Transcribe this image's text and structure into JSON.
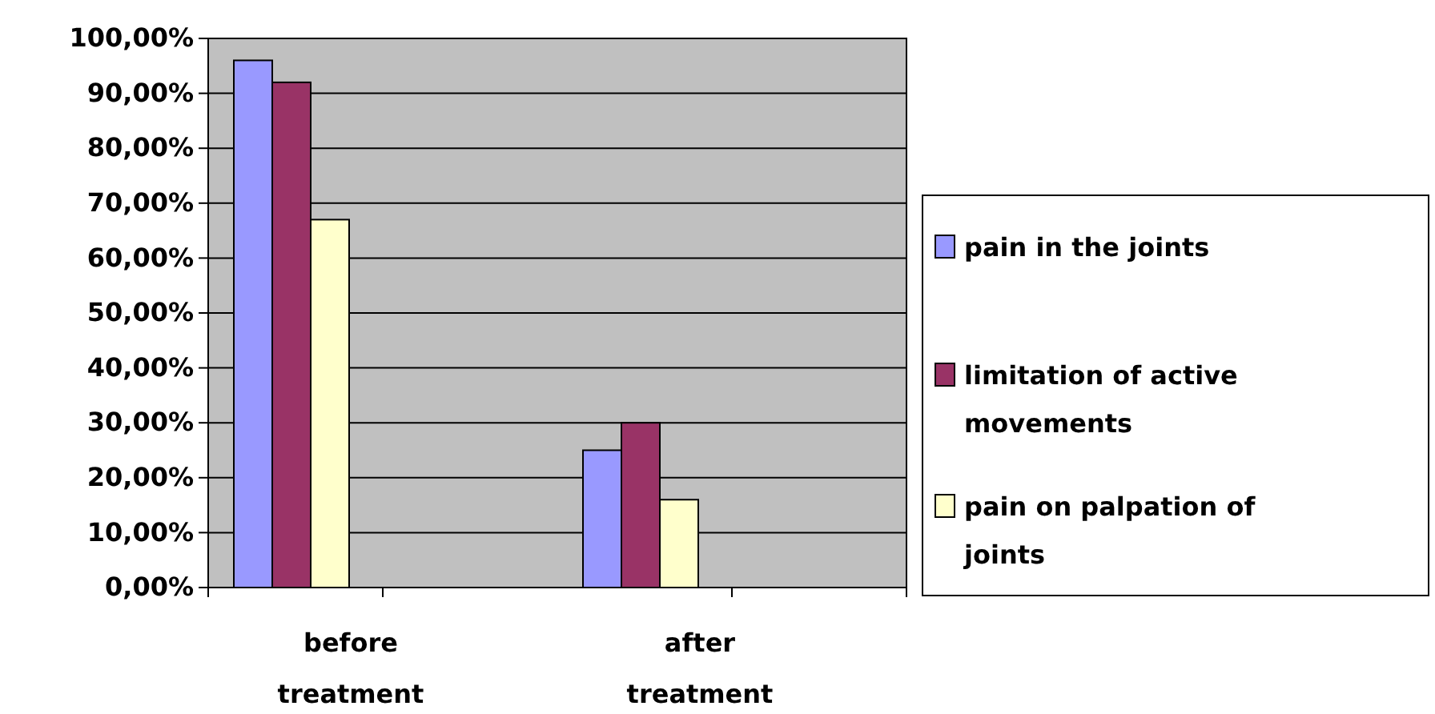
{
  "chart_data": {
    "type": "bar",
    "categories": [
      "before treatment",
      "after treatment"
    ],
    "series": [
      {
        "name": "pain in the joints",
        "color": "#9999ff",
        "values": [
          96,
          25
        ]
      },
      {
        "name": "limitation of active movements",
        "color": "#993366",
        "values": [
          92,
          30
        ]
      },
      {
        "name": "pain on palpation of joints",
        "color": "#ffffcc",
        "values": [
          67,
          16
        ]
      }
    ],
    "ylim": [
      0,
      100
    ],
    "yticks": [
      {
        "value": 0,
        "label": "0,00%"
      },
      {
        "value": 10,
        "label": "10,00%"
      },
      {
        "value": 20,
        "label": "20,00%"
      },
      {
        "value": 30,
        "label": "30,00%"
      },
      {
        "value": 40,
        "label": "40,00%"
      },
      {
        "value": 50,
        "label": "50,00%"
      },
      {
        "value": 60,
        "label": "60,00%"
      },
      {
        "value": 70,
        "label": "70,00%"
      },
      {
        "value": 80,
        "label": "80,00%"
      },
      {
        "value": 90,
        "label": "90,00%"
      },
      {
        "value": 100,
        "label": "100,00%"
      }
    ],
    "grid": "y",
    "legend": "right"
  }
}
